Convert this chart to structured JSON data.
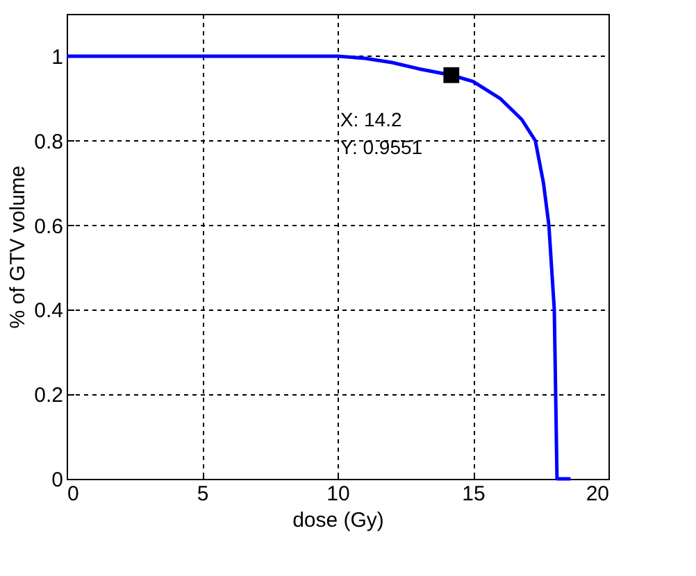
{
  "chart_data": {
    "type": "line",
    "xlabel": "dose (Gy)",
    "ylabel": "% of GTV volume",
    "series": [
      {
        "color": "#0000ff",
        "x": [
          0,
          10,
          11,
          12,
          13,
          14.2,
          15,
          16,
          16.8,
          17.3,
          17.6,
          17.8,
          17.9,
          18,
          18.05,
          18.1,
          18.6
        ],
        "values": [
          1,
          1,
          0.995,
          0.985,
          0.97,
          0.9551,
          0.94,
          0.9,
          0.85,
          0.8,
          0.7,
          0.6,
          0.5,
          0.4,
          0.2,
          0,
          0
        ]
      }
    ],
    "xlim": [
      0,
      20
    ],
    "xticks": [
      0,
      5,
      10,
      15,
      20
    ],
    "ylim": [
      0,
      1.1
    ],
    "yticks": [
      0,
      0.2,
      0.4,
      0.6,
      0.8,
      1
    ],
    "grid": true,
    "line_style": "solid",
    "marker": "none",
    "annotations": [
      {
        "text": "X: 14.2\nY: 0.9551",
        "x": 14.2,
        "y": 0.9551
      }
    ]
  }
}
